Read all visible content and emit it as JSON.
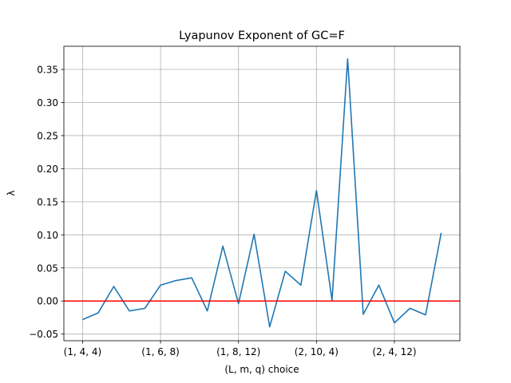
{
  "chart_data": {
    "type": "line",
    "title": "Lyapunov Exponent of GC=F",
    "xlabel": "(L, m, q) choice",
    "ylabel": "λ",
    "grid": true,
    "x_tick_labels": [
      "(1, 4, 4)",
      "(1, 6, 8)",
      "(1, 8, 12)",
      "(2, 10, 4)",
      "(2, 4, 12)"
    ],
    "x_tick_indices": [
      0,
      5,
      10,
      15,
      20
    ],
    "xlim": [
      -1.2,
      24.2
    ],
    "ylim": [
      -0.06,
      0.385
    ],
    "y_ticks": [
      -0.05,
      0.0,
      0.05,
      0.1,
      0.15,
      0.2,
      0.25,
      0.3,
      0.35
    ],
    "y_tick_labels": [
      "−0.05",
      "0.00",
      "0.05",
      "0.10",
      "0.15",
      "0.20",
      "0.25",
      "0.30",
      "0.35"
    ],
    "series": [
      {
        "color": "#1f77b4",
        "values": [
          -0.028,
          -0.018,
          0.022,
          -0.015,
          -0.011,
          0.024,
          0.031,
          0.035,
          -0.015,
          0.083,
          -0.004,
          0.101,
          -0.039,
          0.045,
          0.024,
          0.167,
          0.001,
          0.366,
          -0.02,
          0.024,
          -0.033,
          -0.011,
          -0.021,
          0.103
        ]
      }
    ],
    "reference_line": {
      "y": 0.0,
      "color": "#ff0000"
    }
  }
}
